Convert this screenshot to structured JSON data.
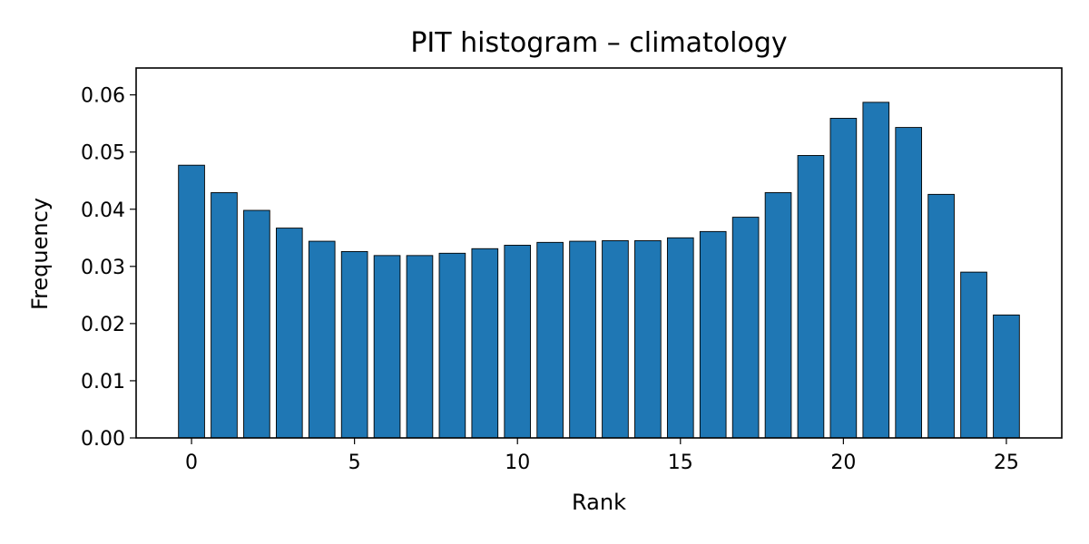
{
  "chart_data": {
    "type": "bar",
    "title": "PIT histogram – climatology",
    "xlabel": "Rank",
    "ylabel": "Frequency",
    "x": [
      0,
      1,
      2,
      3,
      4,
      5,
      6,
      7,
      8,
      9,
      10,
      11,
      12,
      13,
      14,
      15,
      16,
      17,
      18,
      19,
      20,
      21,
      22,
      23,
      24,
      25
    ],
    "values": [
      0.0477,
      0.0429,
      0.0398,
      0.0367,
      0.0344,
      0.0326,
      0.0319,
      0.0319,
      0.0323,
      0.0331,
      0.0337,
      0.0342,
      0.0344,
      0.0345,
      0.0345,
      0.035,
      0.0361,
      0.0386,
      0.0429,
      0.0494,
      0.0559,
      0.0587,
      0.0543,
      0.0426,
      0.029,
      0.0215
    ],
    "xlim": [
      -1.7,
      26.7
    ],
    "ylim": [
      0,
      0.0647
    ],
    "xticks": [
      0,
      5,
      10,
      15,
      20,
      25
    ],
    "xtick_labels": [
      "0",
      "5",
      "10",
      "15",
      "20",
      "25"
    ],
    "yticks": [
      0,
      0.01,
      0.02,
      0.03,
      0.04,
      0.05,
      0.06
    ],
    "ytick_labels": [
      "0.00",
      "0.01",
      "0.02",
      "0.03",
      "0.04",
      "0.05",
      "0.06"
    ],
    "bar_color": "#1f77b4",
    "edge_color": "#000000",
    "grid": false,
    "legend": "none"
  }
}
